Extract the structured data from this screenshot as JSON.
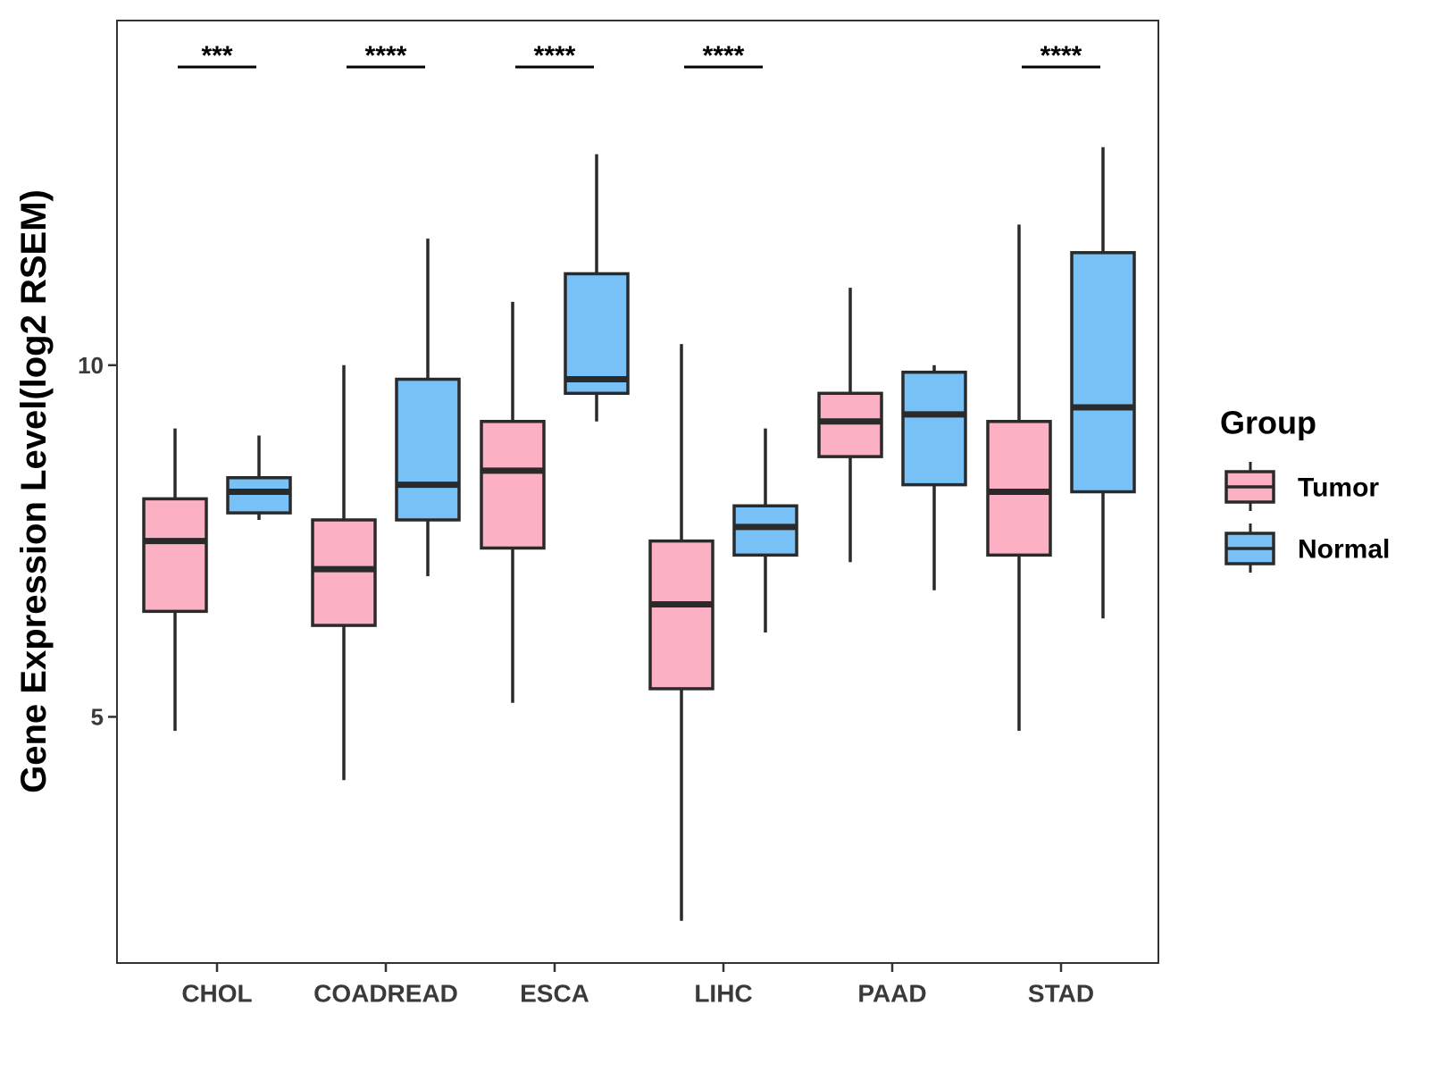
{
  "chart_data": {
    "type": "boxplot",
    "ylabel": "Gene Expression Level(log2 RSEM)",
    "xlabel": "",
    "ylim": [
      1.5,
      14.9
    ],
    "yticks": [
      5,
      10
    ],
    "categories": [
      "CHOL",
      "COADREAD",
      "ESCA",
      "LIHC",
      "PAAD",
      "STAD"
    ],
    "series": [
      {
        "name": "Tumor",
        "color": "#FBB1C3",
        "boxes": [
          {
            "min": 4.8,
            "q1": 6.5,
            "median": 7.5,
            "q3": 8.1,
            "max": 9.1
          },
          {
            "min": 4.1,
            "q1": 6.3,
            "median": 7.1,
            "q3": 7.8,
            "max": 10.0
          },
          {
            "min": 5.2,
            "q1": 7.4,
            "median": 8.5,
            "q3": 9.2,
            "max": 10.9
          },
          {
            "min": 2.1,
            "q1": 5.4,
            "median": 6.6,
            "q3": 7.5,
            "max": 10.3
          },
          {
            "min": 7.2,
            "q1": 8.7,
            "median": 9.2,
            "q3": 9.6,
            "max": 11.1
          },
          {
            "min": 4.8,
            "q1": 7.3,
            "median": 8.2,
            "q3": 9.2,
            "max": 12.0
          }
        ]
      },
      {
        "name": "Normal",
        "color": "#78C1F7",
        "boxes": [
          {
            "min": 7.8,
            "q1": 7.9,
            "median": 8.2,
            "q3": 8.4,
            "max": 9.0
          },
          {
            "min": 7.0,
            "q1": 7.8,
            "median": 8.3,
            "q3": 9.8,
            "max": 11.8
          },
          {
            "min": 9.2,
            "q1": 9.6,
            "median": 9.8,
            "q3": 11.3,
            "max": 13.0
          },
          {
            "min": 6.2,
            "q1": 7.3,
            "median": 7.7,
            "q3": 8.0,
            "max": 9.1
          },
          {
            "min": 6.8,
            "q1": 8.3,
            "median": 9.3,
            "q3": 9.9,
            "max": 10.0
          },
          {
            "min": 6.4,
            "q1": 8.2,
            "median": 9.4,
            "q3": 11.6,
            "max": 13.1
          }
        ]
      }
    ],
    "significance": [
      "***",
      "****",
      "****",
      "****",
      "",
      "****"
    ],
    "legend": {
      "title": "Group",
      "position": "right",
      "entries": [
        "Tumor",
        "Normal"
      ]
    }
  }
}
